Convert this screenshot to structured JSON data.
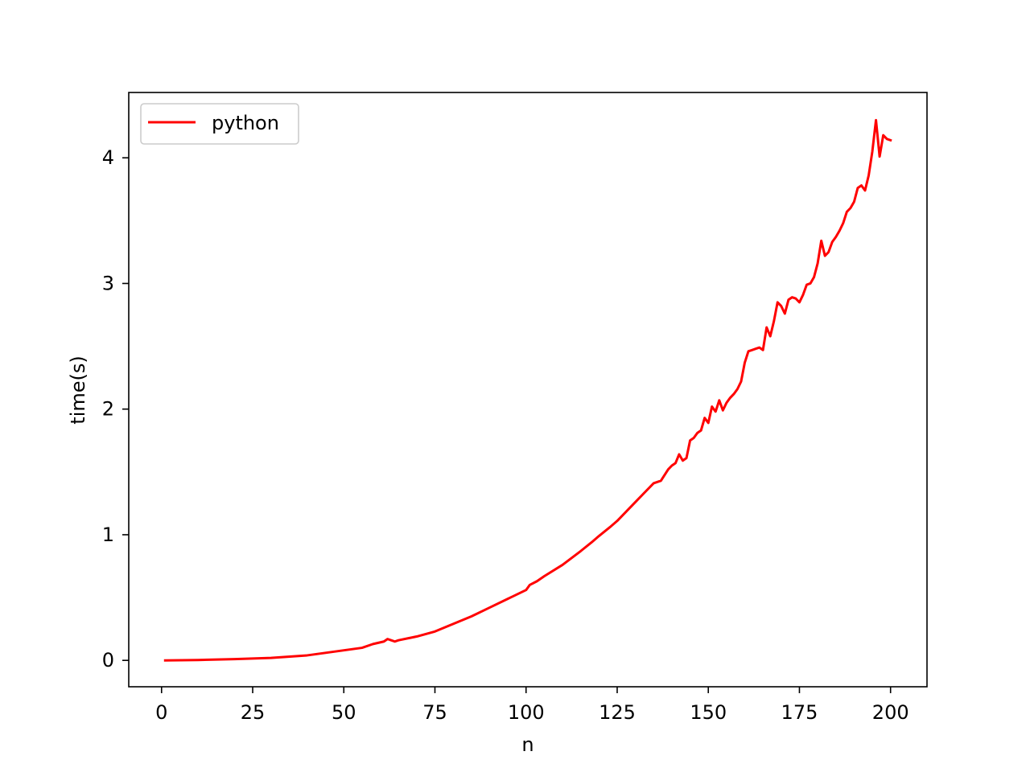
{
  "chart_data": {
    "type": "line",
    "xlabel": "n",
    "ylabel": "time(s)",
    "xlim": [
      -9,
      210
    ],
    "ylim": [
      -0.21,
      4.52
    ],
    "grid": false,
    "legend_position": "top-left",
    "x_ticks": [
      0,
      25,
      50,
      75,
      100,
      125,
      150,
      175,
      200
    ],
    "y_ticks": [
      0,
      1,
      2,
      3,
      4
    ],
    "series": [
      {
        "name": "python",
        "color": "#ff0000",
        "x": [
          1,
          10,
          20,
          30,
          40,
          45,
          50,
          55,
          58,
          61,
          62,
          63,
          64,
          65,
          70,
          75,
          80,
          85,
          90,
          95,
          100,
          101,
          103,
          105,
          110,
          115,
          118,
          120,
          123,
          125,
          128,
          130,
          133,
          135,
          137,
          139,
          140,
          141,
          142,
          143,
          144,
          145,
          146,
          147,
          148,
          149,
          150,
          151,
          152,
          153,
          154,
          155,
          156,
          157,
          158,
          159,
          160,
          161,
          162,
          163,
          164,
          165,
          166,
          167,
          168,
          169,
          170,
          171,
          172,
          173,
          174,
          175,
          176,
          177,
          178,
          179,
          180,
          181,
          182,
          183,
          184,
          185,
          186,
          187,
          188,
          189,
          190,
          191,
          192,
          193,
          194,
          195,
          196,
          197,
          198,
          199,
          200
        ],
        "y": [
          0.0,
          0.003,
          0.01,
          0.02,
          0.04,
          0.06,
          0.08,
          0.1,
          0.13,
          0.15,
          0.17,
          0.16,
          0.15,
          0.16,
          0.19,
          0.23,
          0.29,
          0.35,
          0.42,
          0.49,
          0.56,
          0.6,
          0.63,
          0.67,
          0.76,
          0.87,
          0.94,
          0.99,
          1.06,
          1.11,
          1.2,
          1.26,
          1.35,
          1.41,
          1.43,
          1.52,
          1.55,
          1.57,
          1.64,
          1.59,
          1.61,
          1.75,
          1.77,
          1.81,
          1.83,
          1.93,
          1.89,
          2.02,
          1.98,
          2.07,
          1.99,
          2.05,
          2.09,
          2.12,
          2.16,
          2.22,
          2.37,
          2.46,
          2.47,
          2.48,
          2.49,
          2.47,
          2.65,
          2.58,
          2.7,
          2.85,
          2.82,
          2.76,
          2.87,
          2.89,
          2.88,
          2.85,
          2.91,
          2.99,
          3.0,
          3.05,
          3.16,
          3.34,
          3.22,
          3.25,
          3.33,
          3.37,
          3.42,
          3.48,
          3.57,
          3.6,
          3.65,
          3.76,
          3.78,
          3.74,
          3.86,
          4.05,
          4.3,
          4.01,
          4.18,
          4.15,
          4.14
        ]
      }
    ]
  }
}
